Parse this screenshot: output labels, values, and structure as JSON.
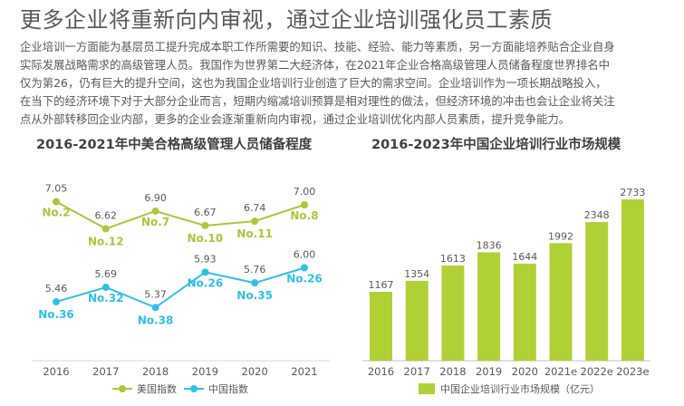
{
  "title": "更多企业将重新向内审视，通过企业培训强化员工素质",
  "paragraph_lines": [
    "企业培训一方面能为基层员工提升完成本职工作所需要的知识、技能、经验、能力等素质，另一方面能培养贴合企业自身",
    "实际发展战略需求的高级管理人员。我国作为世界第二大经济体，在2021年企业合格高级管理人员储备程度世界排名中",
    "仅为第26，仍有巨大的提升空间，这也为我国企业培训行业创造了巨大的需求空间。企业培训作为一项长期战略投入，",
    "在当下的经济环境下对于大部分企业而言，短期内缩减培训预算是相对理性的做法，但经济环境的冲击也会让企业将关注",
    "点从外部转移回企业内部，更多的企业会逐渐重新向内审视，通过企业培训优化内部人员素质，提升竞争能力。"
  ],
  "chart_data": [
    {
      "type": "line",
      "title": "2016-2021年中美合格高级管理人员储备程度",
      "categories": [
        "2016",
        "2017",
        "2018",
        "2019",
        "2020",
        "2021"
      ],
      "series": [
        {
          "name": "美国指数",
          "color": "#a7c93a",
          "values": [
            7.05,
            6.62,
            6.9,
            6.67,
            6.74,
            7.0
          ],
          "value_labels": [
            "7.05",
            "6.62",
            "6.90",
            "6.67",
            "6.74",
            "7.00"
          ],
          "rank_labels": [
            "No.2",
            "No.12",
            "No.7",
            "No.10",
            "No.11",
            "No.8"
          ]
        },
        {
          "name": "中国指数",
          "color": "#2fc0ea",
          "values": [
            5.46,
            5.69,
            5.37,
            5.93,
            5.76,
            6.0
          ],
          "value_labels": [
            "5.46",
            "5.69",
            "5.37",
            "5.93",
            "5.76",
            "6.00"
          ],
          "rank_labels": [
            "No.36",
            "No.32",
            "No.38",
            "No.26",
            "No.35",
            "No.26"
          ]
        }
      ],
      "ylim": [
        4.4,
        7.3
      ],
      "grid": false,
      "legend": "bottom"
    },
    {
      "type": "bar",
      "title": "2016-2023年中国企业培训行业市场规模",
      "categories": [
        "2016",
        "2017",
        "2018",
        "2019",
        "2020",
        "2021e",
        "2022e",
        "2023e"
      ],
      "series": [
        {
          "name": "中国企业培训行业市场规模（亿元）",
          "color": "#afd136",
          "values": [
            1167,
            1354,
            1613,
            1836,
            1644,
            1992,
            2348,
            2733
          ],
          "value_labels": [
            "1167",
            "1354",
            "1613",
            "1836",
            "1644",
            "1992",
            "2348",
            "2733"
          ]
        }
      ],
      "ylim": [
        0,
        2733
      ],
      "grid": false,
      "legend": "bottom"
    }
  ]
}
